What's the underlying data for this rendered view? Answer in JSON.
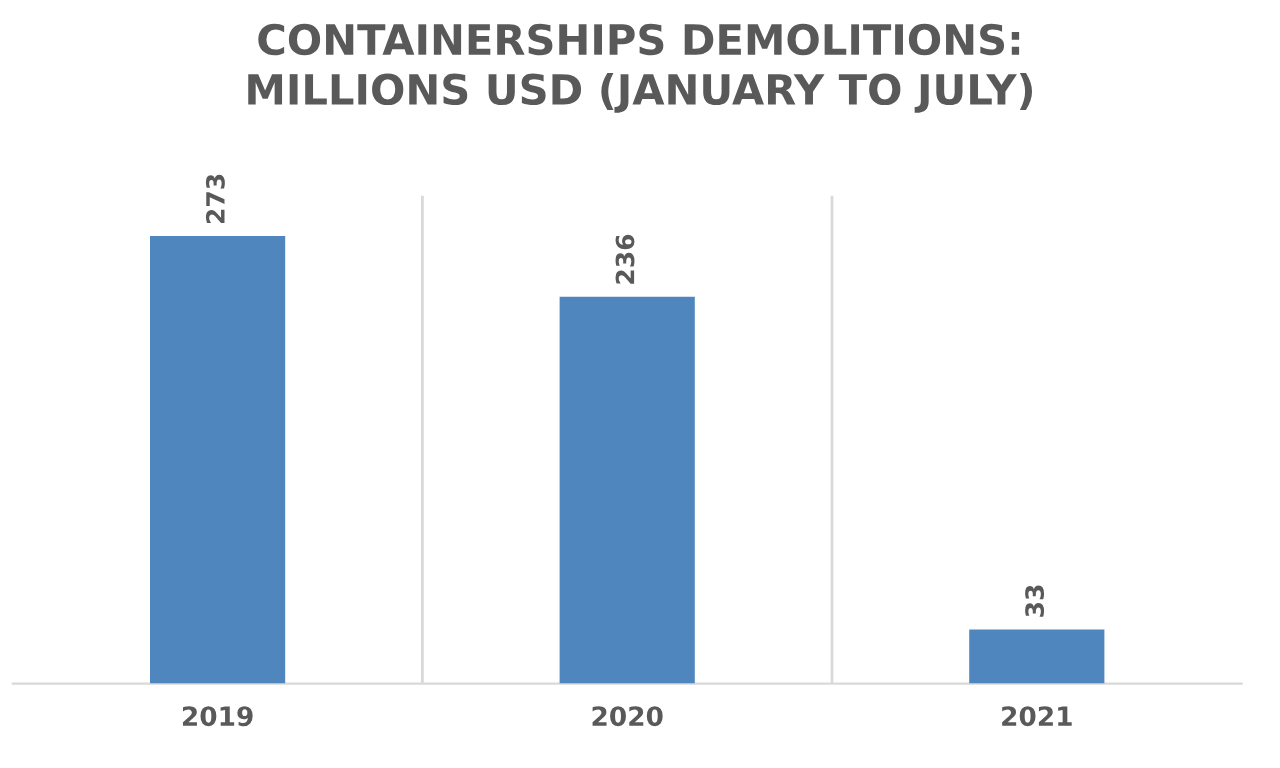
{
  "chart_data": {
    "type": "bar",
    "title": "CONTAINERSHIPS DEMOLITIONS:\nMILLIONS USD (JANUARY TO JULY)",
    "categories": [
      "2019",
      "2020",
      "2021"
    ],
    "values": [
      273,
      236,
      33
    ],
    "color": "#4f86be",
    "data_labels": true,
    "grid": "x"
  }
}
